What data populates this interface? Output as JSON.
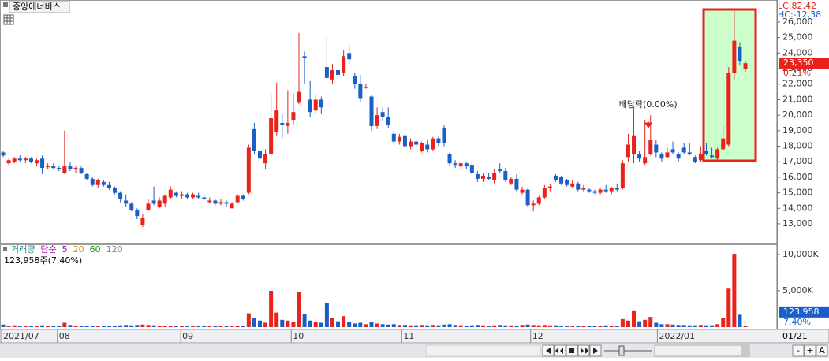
{
  "chart_data": [
    {
      "type": "candlestick",
      "title": "중앙에너비스",
      "open": [
        17600,
        16900,
        17000,
        17200,
        17100,
        17200,
        16900,
        17200,
        16700,
        16700,
        16600,
        16300,
        16700,
        16500,
        16600,
        16200,
        15900,
        15500,
        15700,
        15500,
        15300,
        15000,
        14500,
        14300,
        13900,
        12900,
        13900,
        14500,
        14100,
        14300,
        14700,
        15000,
        14800,
        14900,
        14700,
        14800,
        14700,
        14400,
        14500,
        14300,
        14400,
        14000,
        14400,
        14800,
        15000,
        19100,
        17700,
        16900,
        17500,
        18900,
        19500,
        19300,
        19700,
        20800,
        23800,
        21000,
        20300,
        21000,
        23100,
        22300,
        22900,
        22700,
        24000,
        22500,
        22000,
        21800,
        21200,
        19300,
        20200,
        19900,
        18800,
        18300,
        18700,
        18000,
        18300,
        17700,
        18100,
        17800,
        18500,
        19200,
        17500,
        16900,
        16700,
        16900,
        16800,
        16200,
        15900,
        16000,
        15800,
        16500,
        16400,
        15600,
        15900,
        15000,
        15200,
        14200,
        14300,
        14700,
        15300,
        16100,
        16000,
        15800,
        15400,
        15600,
        15200,
        15200,
        15100,
        15000,
        15200,
        15100,
        15300,
        15300,
        17300,
        17500,
        17500,
        16900,
        17500,
        18100,
        17500,
        17300,
        17800,
        17500,
        17900,
        17600,
        17300,
        17100,
        17700,
        17400,
        17200,
        17800,
        18100,
        22700,
        24400,
        23000
      ],
      "high": [
        17700,
        17200,
        17300,
        17400,
        17300,
        17300,
        17200,
        17400,
        16900,
        16900,
        16700,
        19000,
        17000,
        16700,
        16700,
        16300,
        16000,
        15900,
        15800,
        15700,
        15400,
        15100,
        14900,
        14400,
        14000,
        13600,
        14600,
        15400,
        14700,
        14900,
        15400,
        15100,
        15100,
        15000,
        15000,
        15000,
        14900,
        14700,
        14600,
        14600,
        14500,
        14400,
        14900,
        14900,
        18100,
        19500,
        18500,
        17800,
        21400,
        22100,
        20100,
        21600,
        21400,
        25300,
        24100,
        22200,
        21300,
        21200,
        25100,
        23300,
        23100,
        24200,
        24500,
        22700,
        22600,
        22000,
        21300,
        20500,
        20500,
        20500,
        19000,
        18800,
        18800,
        18500,
        18500,
        18300,
        18400,
        18600,
        18600,
        19400,
        17600,
        17100,
        17000,
        17000,
        17000,
        16400,
        16300,
        16300,
        16500,
        16900,
        16600,
        16000,
        16200,
        15400,
        15300,
        14500,
        14800,
        15500,
        15600,
        16200,
        16100,
        15900,
        15800,
        15700,
        15500,
        15300,
        15200,
        15300,
        15500,
        15400,
        15600,
        17100,
        18800,
        20600,
        17700,
        19700,
        20000,
        18400,
        17600,
        17900,
        18300,
        17600,
        18200,
        18200,
        17400,
        18000,
        18200,
        17900,
        17900,
        19300,
        23100,
        26700,
        24700,
        23500
      ],
      "low": [
        17300,
        16800,
        16900,
        17000,
        16900,
        16900,
        16700,
        16200,
        16500,
        16500,
        16400,
        16200,
        16400,
        16300,
        16200,
        15800,
        15400,
        15300,
        15400,
        15200,
        14900,
        14400,
        14100,
        13800,
        13300,
        12800,
        13800,
        14200,
        14000,
        14100,
        14600,
        14700,
        14600,
        14600,
        14600,
        14600,
        14500,
        14300,
        14200,
        14200,
        14100,
        14000,
        14300,
        14500,
        14900,
        17500,
        16900,
        16500,
        17300,
        18700,
        18500,
        18800,
        19400,
        20700,
        22000,
        19900,
        20100,
        20100,
        22300,
        22000,
        22200,
        22500,
        23300,
        21700,
        20800,
        21700,
        19000,
        19100,
        19600,
        19200,
        18100,
        18100,
        17900,
        17800,
        17900,
        17600,
        17600,
        17700,
        18000,
        18000,
        16700,
        16600,
        16500,
        16500,
        16200,
        15700,
        15700,
        15800,
        15600,
        16300,
        15700,
        15500,
        15100,
        14900,
        14100,
        13800,
        14200,
        14600,
        15100,
        15700,
        15500,
        15400,
        15300,
        15100,
        15100,
        15000,
        14900,
        14900,
        15000,
        14900,
        15100,
        15200,
        17000,
        16900,
        17000,
        16800,
        17400,
        17300,
        17000,
        17200,
        17500,
        17000,
        17500,
        17400,
        16900,
        17000,
        17400,
        17200,
        17100,
        17700,
        18000,
        22300,
        23200,
        22800
      ],
      "close": [
        17400,
        17100,
        17200,
        17100,
        17200,
        17000,
        17100,
        16600,
        16700,
        16600,
        16500,
        16700,
        16500,
        16600,
        16300,
        15900,
        15500,
        15800,
        15500,
        15300,
        15000,
        14600,
        14300,
        13900,
        13500,
        13400,
        14300,
        14300,
        14500,
        14800,
        15200,
        14800,
        14900,
        14700,
        14900,
        14700,
        14600,
        14500,
        14300,
        14400,
        14300,
        14300,
        14800,
        14600,
        17900,
        17700,
        17200,
        17500,
        19800,
        20300,
        19400,
        19500,
        20200,
        21500,
        23700,
        20200,
        21000,
        20500,
        22400,
        22900,
        22600,
        23800,
        23600,
        22000,
        21100,
        21800,
        19300,
        20000,
        19900,
        19400,
        18300,
        18600,
        18000,
        18300,
        18100,
        18200,
        17800,
        18500,
        18200,
        18200,
        16900,
        16800,
        16900,
        16700,
        16300,
        15900,
        16100,
        15900,
        16300,
        16400,
        15800,
        15900,
        15200,
        15200,
        14200,
        14300,
        14700,
        15300,
        15400,
        15800,
        15600,
        15500,
        15600,
        15200,
        15300,
        15100,
        15000,
        15200,
        15100,
        15300,
        15200,
        16900,
        18100,
        18700,
        17200,
        17300,
        18400,
        17600,
        17200,
        17600,
        17600,
        17200,
        17600,
        17500,
        17000,
        17500,
        17500,
        17300,
        17800,
        18500,
        22700,
        24800,
        23500,
        23350
      ],
      "ylim": [
        11780,
        27420
      ],
      "yticks": [
        {
          "value": 13000,
          "label": "13,000"
        },
        {
          "value": 14000,
          "label": "14,000"
        },
        {
          "value": 15000,
          "label": "15,000"
        },
        {
          "value": 16000,
          "label": "16,000"
        },
        {
          "value": 17000,
          "label": "17,000"
        },
        {
          "value": 18000,
          "label": "18,000"
        },
        {
          "value": 19000,
          "label": "19,000"
        },
        {
          "value": 20000,
          "label": "20,000"
        },
        {
          "value": 21000,
          "label": "21,000"
        },
        {
          "value": 22000,
          "label": "22,000"
        },
        {
          "value": 23000,
          "label": "23,000"
        },
        {
          "value": 24000,
          "label": "24,000"
        },
        {
          "value": 25000,
          "label": "25,000"
        },
        {
          "value": 26000,
          "label": "26,000"
        }
      ],
      "xlim": [
        -0.57,
        138.65
      ],
      "xticks": [
        {
          "value": 0,
          "label": "2021/07"
        },
        {
          "value": 10,
          "label": "08"
        },
        {
          "value": 32.1,
          "label": "09"
        },
        {
          "value": 51.9,
          "label": "10"
        },
        {
          "value": 71.7,
          "label": "11"
        },
        {
          "value": 94.8,
          "label": "12"
        },
        {
          "value": 117.5,
          "label": "2022/01"
        }
      ],
      "cursor_date": "01/21",
      "up_color": "#e8231b",
      "down_color": "#1a5fc8",
      "annotation": {
        "text": "배당락(0.00%)",
        "x": 116
      },
      "lc_label": "LC:82,42",
      "hc_label": "HC:-12,38",
      "last_label": "23,350",
      "change_label": "0,21%"
    },
    {
      "type": "bar",
      "legend": [
        {
          "text": "거래량",
          "color": "#1f8f8f"
        },
        {
          "text": "단순",
          "color": "#b000b0"
        },
        {
          "text": "5",
          "color": "#b000b0"
        },
        {
          "text": "20",
          "color": "#e09000"
        },
        {
          "text": "60",
          "color": "#1a8f1a"
        },
        {
          "text": "120",
          "color": "#808080"
        }
      ],
      "current_label": "123,958주(7,40%)",
      "values": [
        350,
        200,
        250,
        200,
        150,
        150,
        200,
        250,
        150,
        150,
        150,
        600,
        300,
        200,
        150,
        200,
        150,
        150,
        150,
        200,
        200,
        250,
        300,
        250,
        300,
        350,
        300,
        250,
        200,
        200,
        200,
        150,
        150,
        150,
        150,
        100,
        150,
        120,
        100,
        120,
        100,
        120,
        150,
        150,
        1900,
        1300,
        900,
        600,
        5000,
        2000,
        1000,
        900,
        700,
        4800,
        1800,
        900,
        700,
        600,
        3300,
        1200,
        800,
        1500,
        700,
        500,
        600,
        400,
        700,
        500,
        400,
        350,
        400,
        300,
        300,
        250,
        250,
        300,
        250,
        300,
        250,
        350,
        400,
        300,
        250,
        200,
        250,
        300,
        250,
        200,
        250,
        300,
        250,
        250,
        200,
        300,
        350,
        300,
        250,
        300,
        250,
        250,
        200,
        200,
        200,
        150,
        200,
        150,
        200,
        200,
        250,
        200,
        200,
        1100,
        900,
        2300,
        800,
        1000,
        1400,
        600,
        400,
        400,
        350,
        300,
        300,
        250,
        250,
        300,
        250,
        250,
        400,
        1200,
        5300,
        10100,
        1700,
        123.958
      ],
      "ylim": [
        0,
        11630
      ],
      "yticks": [
        {
          "value": 5000,
          "label": "5,000K"
        },
        {
          "value": 10000,
          "label": "10,000K"
        }
      ],
      "last_label": "123,958",
      "ratio_label": "7,40%"
    }
  ],
  "ui": {
    "toolbar": [
      "-",
      "+",
      "A"
    ]
  }
}
